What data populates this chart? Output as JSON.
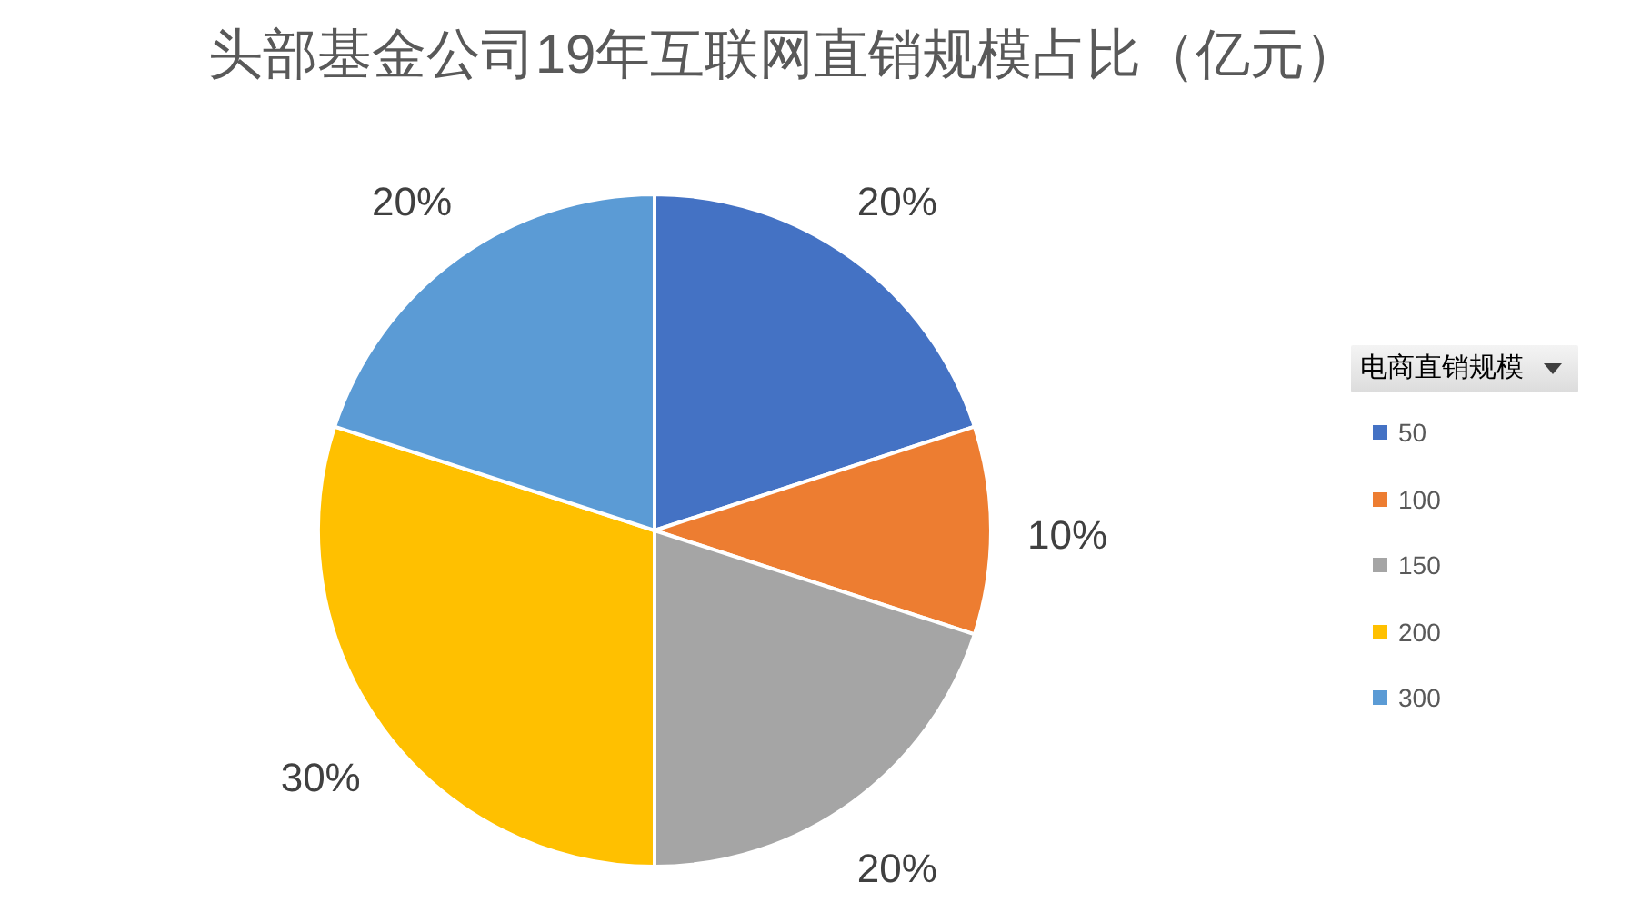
{
  "chart_data": {
    "type": "pie",
    "title": "头部基金公司19年互联网直销规模占比（亿元）",
    "legend_title": "电商直销规模",
    "categories": [
      "50",
      "100",
      "150",
      "200",
      "300"
    ],
    "values": [
      20,
      10,
      20,
      30,
      20
    ],
    "colors": [
      "#4472c4",
      "#ed7d31",
      "#a5a5a5",
      "#ffc000",
      "#5b9bd5"
    ],
    "value_labels": [
      "20%",
      "10%",
      "20%",
      "30%",
      "20%"
    ],
    "legend": "right"
  }
}
